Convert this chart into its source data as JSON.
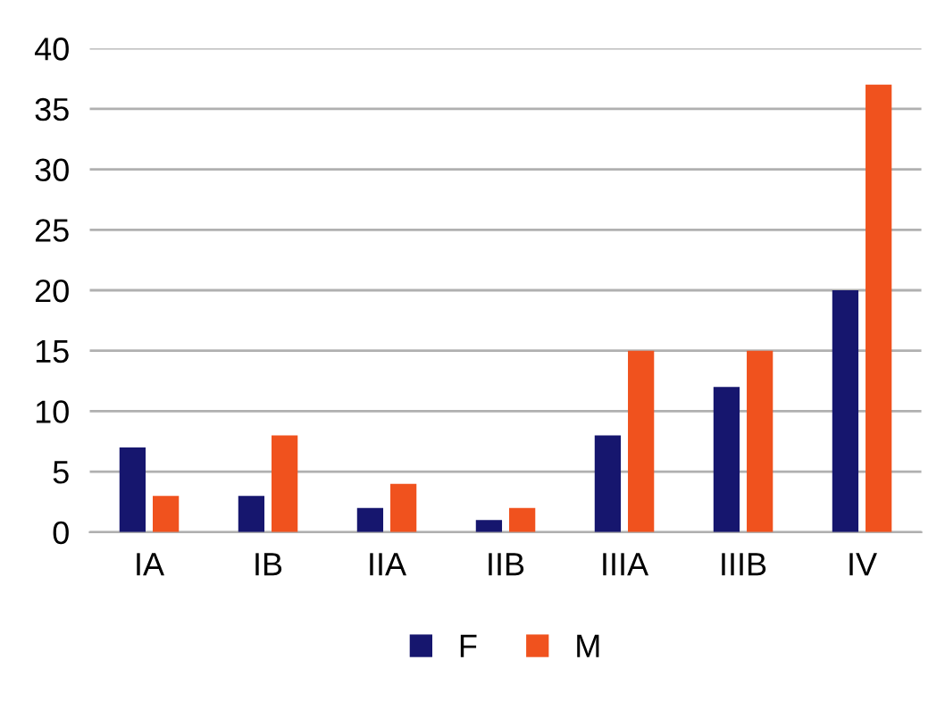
{
  "chart_data": {
    "type": "bar",
    "categories": [
      "IA",
      "IB",
      "IIA",
      "IIB",
      "IIIA",
      "IIIB",
      "IV"
    ],
    "series": [
      {
        "name": "F",
        "color": "#16166e",
        "values": [
          7,
          3,
          2,
          1,
          8,
          12,
          20
        ]
      },
      {
        "name": "M",
        "color": "#f0521e",
        "values": [
          3,
          8,
          4,
          2,
          15,
          15,
          37
        ]
      }
    ],
    "ylim": [
      0,
      40
    ],
    "yticks": [
      0,
      5,
      10,
      15,
      20,
      25,
      30,
      35,
      40
    ],
    "grid": "y",
    "legend": "bottom"
  }
}
